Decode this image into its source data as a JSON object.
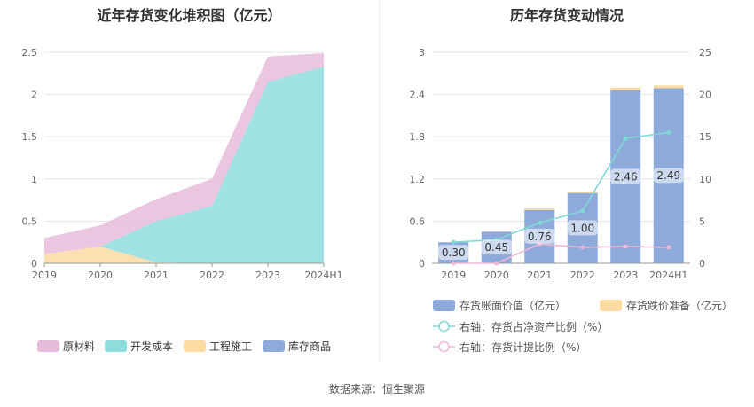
{
  "left": {
    "title": "近年存货变化堆积图（亿元）"
  },
  "right": {
    "title": "历年存货变动情况"
  },
  "source": "数据来源：恒生聚源",
  "chart_data": [
    {
      "type": "area",
      "stacked": true,
      "title": "近年存货变化堆积图（亿元）",
      "categories": [
        "2019",
        "2020",
        "2021",
        "2022",
        "2023",
        "2024H1"
      ],
      "ylim": [
        0,
        2.5
      ],
      "yticks": [
        "0",
        "0.5",
        "1",
        "1.5",
        "2",
        "2.5"
      ],
      "grid": true,
      "legend_position": "bottom",
      "series": [
        {
          "name": "库存商品",
          "color": "#8eaadb",
          "values": [
            0,
            0,
            0,
            0,
            0,
            0
          ]
        },
        {
          "name": "工程施工",
          "color": "#fddba3",
          "values": [
            0.11,
            0.2,
            0.01,
            0,
            0,
            0
          ]
        },
        {
          "name": "开发成本",
          "color": "#8fdcdc",
          "values": [
            0,
            0,
            0.49,
            0.68,
            2.15,
            2.33
          ]
        },
        {
          "name": "原材料",
          "color": "#e6bcdc",
          "values": [
            0.19,
            0.25,
            0.26,
            0.32,
            0.3,
            0.16
          ]
        }
      ],
      "legend_order": [
        "原材料",
        "开发成本",
        "工程施工",
        "库存商品"
      ]
    },
    {
      "type": "bar",
      "stacked": true,
      "title": "历年存货变动情况",
      "categories": [
        "2019",
        "2020",
        "2021",
        "2022",
        "2023",
        "2024H1"
      ],
      "ylim": [
        0,
        3
      ],
      "yticks": [
        "0",
        "0.6",
        "1.2",
        "1.8",
        "2.4",
        "3"
      ],
      "y2lim": [
        0,
        25
      ],
      "y2ticks": [
        "0",
        "5",
        "10",
        "15",
        "20",
        "25"
      ],
      "grid": true,
      "legend_position": "bottom",
      "series": [
        {
          "name": "存货账面价值（亿元）",
          "color": "#8eaadb",
          "axis": "left",
          "type": "bar",
          "values": [
            0.3,
            0.45,
            0.76,
            1.0,
            2.46,
            2.49
          ],
          "labels": [
            "0.30",
            "0.45",
            "0.76",
            "1.00",
            "2.46",
            "2.49"
          ]
        },
        {
          "name": "存货跌价准备（亿元）",
          "color": "#fddba3",
          "axis": "left",
          "type": "bar",
          "values": [
            0,
            0,
            0.02,
            0.02,
            0.04,
            0.04
          ]
        },
        {
          "name": "右轴：存货占净资产比例（%）",
          "color": "#7fd9d6",
          "axis": "right",
          "type": "line",
          "values": [
            2.5,
            2.8,
            4.8,
            6.2,
            14.8,
            15.5
          ]
        },
        {
          "name": "右轴：存货计提比例（%）",
          "color": "#eeb8d8",
          "axis": "right",
          "type": "line",
          "values": [
            0,
            0,
            2.3,
            1.9,
            2.0,
            1.9
          ]
        }
      ]
    }
  ]
}
